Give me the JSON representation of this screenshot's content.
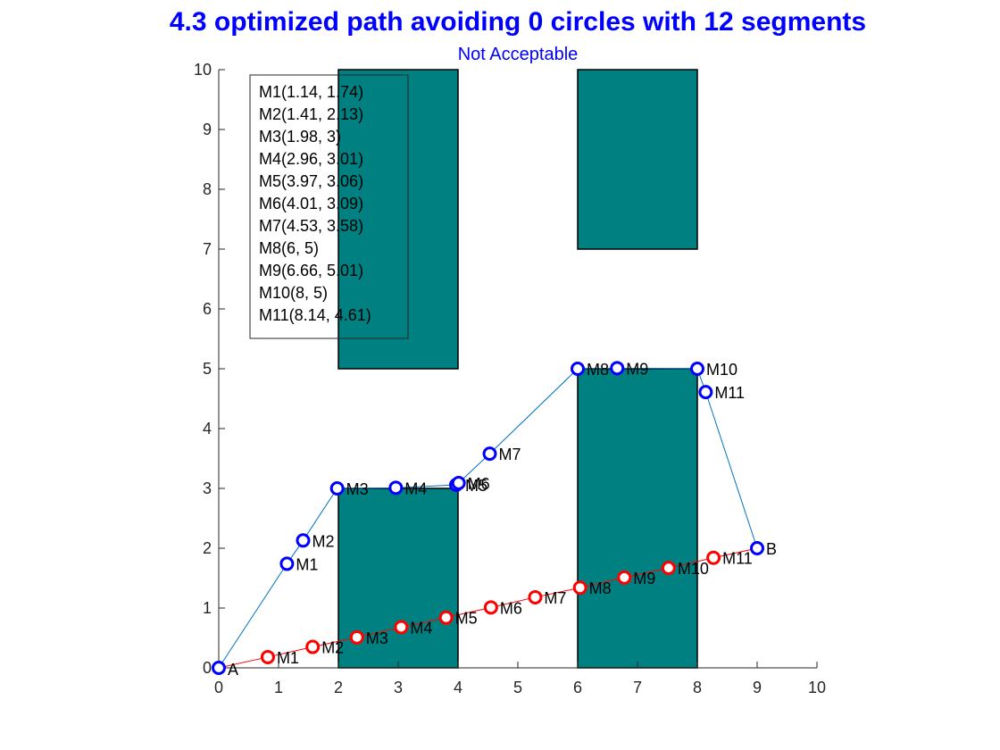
{
  "chart_data": {
    "type": "line",
    "title": "4.3 optimized path avoiding 0 circles with 12 segments",
    "subtitle": "Not Acceptable",
    "xlim": [
      0,
      10
    ],
    "ylim": [
      0,
      10
    ],
    "xticks": [
      0,
      1,
      2,
      3,
      4,
      5,
      6,
      7,
      8,
      9,
      10
    ],
    "yticks": [
      0,
      1,
      2,
      3,
      4,
      5,
      6,
      7,
      8,
      9,
      10
    ],
    "grid": false,
    "obstacles": [
      {
        "x": [
          2,
          4
        ],
        "y": [
          5,
          10
        ]
      },
      {
        "x": [
          6,
          8
        ],
        "y": [
          7,
          10
        ]
      },
      {
        "x": [
          2,
          4
        ],
        "y": [
          0,
          3
        ]
      },
      {
        "x": [
          6,
          8
        ],
        "y": [
          0,
          5
        ]
      }
    ],
    "obstacle_color": "#008080",
    "start": {
      "label": "A",
      "x": 0,
      "y": 0
    },
    "end": {
      "label": "B",
      "x": 9,
      "y": 2
    },
    "series": [
      {
        "color": "#0000ff",
        "line_color": "#0072bd",
        "points": [
          {
            "label": "M1",
            "x": 1.14,
            "y": 1.74
          },
          {
            "label": "M2",
            "x": 1.41,
            "y": 2.13
          },
          {
            "label": "M3",
            "x": 1.98,
            "y": 3
          },
          {
            "label": "M4",
            "x": 2.96,
            "y": 3.01
          },
          {
            "label": "M5",
            "x": 3.97,
            "y": 3.06
          },
          {
            "label": "M6",
            "x": 4.01,
            "y": 3.09
          },
          {
            "label": "M7",
            "x": 4.53,
            "y": 3.58
          },
          {
            "label": "M8",
            "x": 6,
            "y": 5
          },
          {
            "label": "M9",
            "x": 6.66,
            "y": 5.01
          },
          {
            "label": "M10",
            "x": 8,
            "y": 5
          },
          {
            "label": "M11",
            "x": 8.14,
            "y": 4.61
          }
        ]
      },
      {
        "color": "#ff0000",
        "line_color": "#ff0000",
        "points": [
          {
            "label": "M1",
            "x": 0.82,
            "y": 0.18
          },
          {
            "label": "M2",
            "x": 1.57,
            "y": 0.35
          },
          {
            "label": "M3",
            "x": 2.31,
            "y": 0.51
          },
          {
            "label": "M4",
            "x": 3.05,
            "y": 0.68
          },
          {
            "label": "M5",
            "x": 3.8,
            "y": 0.84
          },
          {
            "label": "M6",
            "x": 4.55,
            "y": 1.01
          },
          {
            "label": "M7",
            "x": 5.29,
            "y": 1.18
          },
          {
            "label": "M8",
            "x": 6.04,
            "y": 1.34
          },
          {
            "label": "M9",
            "x": 6.78,
            "y": 1.51
          },
          {
            "label": "M10",
            "x": 7.52,
            "y": 1.67
          },
          {
            "label": "M11",
            "x": 8.27,
            "y": 1.84
          }
        ]
      }
    ],
    "legend_box": {
      "position": "top-left",
      "entries": [
        "M1(1.14, 1.74)",
        "M2(1.41, 2.13)",
        "M3(1.98, 3)",
        "M4(2.96, 3.01)",
        "M5(3.97, 3.06)",
        "M6(4.01, 3.09)",
        "M7(4.53, 3.58)",
        "M8(6, 5)",
        "M9(6.66, 5.01)",
        "M10(8, 5)",
        "M11(8.14, 4.61)"
      ]
    }
  }
}
